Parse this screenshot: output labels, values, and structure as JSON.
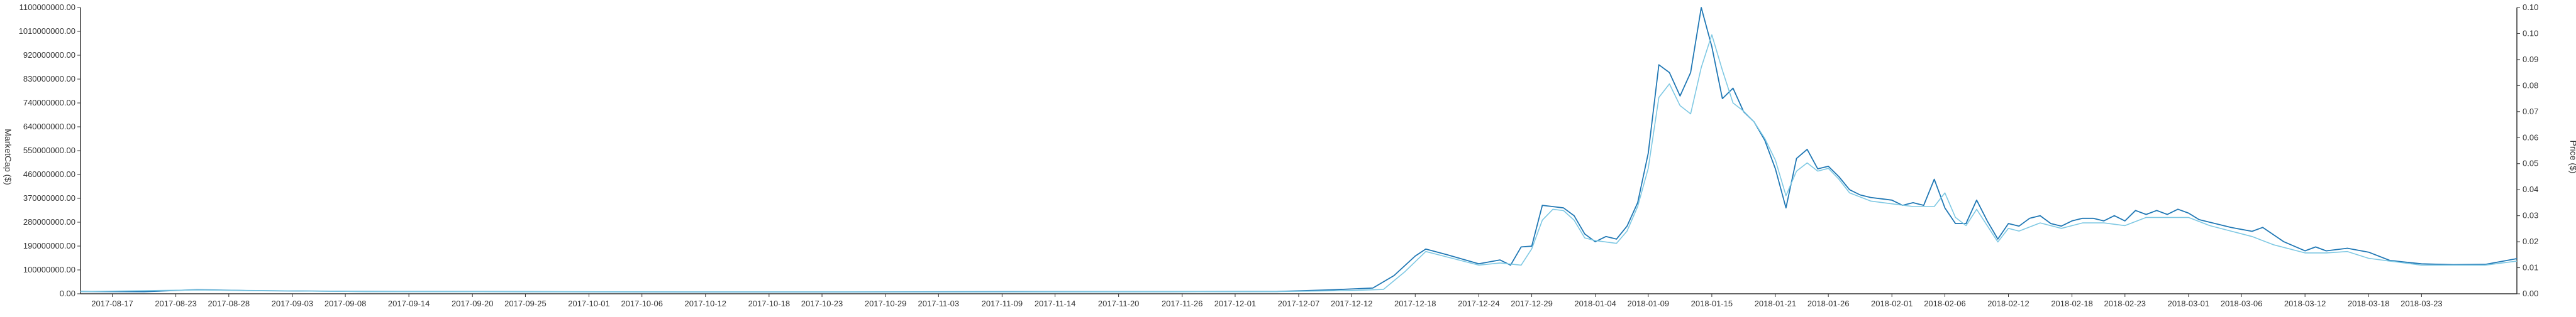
{
  "chart_data": {
    "type": "line",
    "title": "",
    "ylabel_left": "MarketCap ($)",
    "ylabel_right": "Price ($)",
    "y_left_ticks": [
      "0.00",
      "100000000.00",
      "190000000.00",
      "280000000.00",
      "370000000.00",
      "460000000.00",
      "550000000.00",
      "640000000.00",
      "740000000.00",
      "830000000.00",
      "920000000.00",
      "1010000000.00",
      "1100000000.00"
    ],
    "y_right_ticks": [
      "0.00",
      "0.01",
      "0.02",
      "0.03",
      "0.04",
      "0.05",
      "0.06",
      "0.07",
      "0.08",
      "0.09",
      "0.10",
      "0.10"
    ],
    "ylim_left": [
      0,
      1100000000
    ],
    "ylim_right": [
      0,
      0.105
    ],
    "x_ticks": [
      "2017-08-17",
      "2017-08-23",
      "2017-08-28",
      "2017-09-03",
      "2017-09-08",
      "2017-09-14",
      "2017-09-20",
      "2017-09-25",
      "2017-10-01",
      "2017-10-06",
      "2017-10-12",
      "2017-10-18",
      "2017-10-23",
      "2017-10-29",
      "2017-11-03",
      "2017-11-09",
      "2017-11-14",
      "2017-11-20",
      "2017-11-26",
      "2017-12-01",
      "2017-12-07",
      "2017-12-12",
      "2017-12-18",
      "2017-12-24",
      "2017-12-29",
      "2018-01-04",
      "2018-01-09",
      "2018-01-15",
      "2018-01-21",
      "2018-01-26",
      "2018-02-01",
      "2018-02-06",
      "2018-02-12",
      "2018-02-18",
      "2018-02-23",
      "2018-03-01",
      "2018-03-06",
      "2018-03-12",
      "2018-03-18",
      "2018-03-23"
    ],
    "grid": false,
    "colors": {
      "marketcap": "#1f77b4",
      "price": "#7ec8e3",
      "axis": "#333333"
    },
    "series": [
      {
        "axis": "left",
        "points": [
          [
            "2017-08-14",
            9000000
          ],
          [
            "2017-08-20",
            8000000
          ],
          [
            "2017-08-25",
            16000000
          ],
          [
            "2017-08-30",
            12000000
          ],
          [
            "2017-09-10",
            9000000
          ],
          [
            "2017-09-25",
            8000000
          ],
          [
            "2017-10-10",
            7000000
          ],
          [
            "2017-10-25",
            7000000
          ],
          [
            "2017-11-10",
            8000000
          ],
          [
            "2017-11-25",
            8000000
          ],
          [
            "2017-12-05",
            9000000
          ],
          [
            "2017-12-10",
            15000000
          ],
          [
            "2017-12-14",
            22000000
          ],
          [
            "2017-12-16",
            70000000
          ],
          [
            "2017-12-18",
            145000000
          ],
          [
            "2017-12-19",
            172000000
          ],
          [
            "2017-12-21",
            150000000
          ],
          [
            "2017-12-24",
            115000000
          ],
          [
            "2017-12-26",
            130000000
          ],
          [
            "2017-12-27",
            110000000
          ],
          [
            "2017-12-28",
            180000000
          ],
          [
            "2017-12-29",
            183000000
          ],
          [
            "2017-12-30",
            340000000
          ],
          [
            "2017-12-31",
            335000000
          ],
          [
            "2018-01-01",
            330000000
          ],
          [
            "2018-01-02",
            300000000
          ],
          [
            "2018-01-03",
            230000000
          ],
          [
            "2018-01-04",
            200000000
          ],
          [
            "2018-01-05",
            220000000
          ],
          [
            "2018-01-06",
            210000000
          ],
          [
            "2018-01-07",
            260000000
          ],
          [
            "2018-01-08",
            350000000
          ],
          [
            "2018-01-09",
            540000000
          ],
          [
            "2018-01-10",
            880000000
          ],
          [
            "2018-01-11",
            850000000
          ],
          [
            "2018-01-12",
            760000000
          ],
          [
            "2018-01-13",
            850000000
          ],
          [
            "2018-01-14",
            1100000000
          ],
          [
            "2018-01-15",
            950000000
          ],
          [
            "2018-01-16",
            750000000
          ],
          [
            "2018-01-17",
            790000000
          ],
          [
            "2018-01-18",
            700000000
          ],
          [
            "2018-01-19",
            660000000
          ],
          [
            "2018-01-20",
            590000000
          ],
          [
            "2018-01-21",
            480000000
          ],
          [
            "2018-01-22",
            330000000
          ],
          [
            "2018-01-23",
            520000000
          ],
          [
            "2018-01-24",
            555000000
          ],
          [
            "2018-01-25",
            480000000
          ],
          [
            "2018-01-26",
            490000000
          ],
          [
            "2018-01-27",
            450000000
          ],
          [
            "2018-01-28",
            400000000
          ],
          [
            "2018-01-29",
            380000000
          ],
          [
            "2018-01-30",
            370000000
          ],
          [
            "2018-01-31",
            365000000
          ],
          [
            "2018-02-01",
            360000000
          ],
          [
            "2018-02-02",
            340000000
          ],
          [
            "2018-02-03",
            350000000
          ],
          [
            "2018-02-04",
            340000000
          ],
          [
            "2018-02-05",
            440000000
          ],
          [
            "2018-02-06",
            330000000
          ],
          [
            "2018-02-07",
            270000000
          ],
          [
            "2018-02-08",
            270000000
          ],
          [
            "2018-02-09",
            360000000
          ],
          [
            "2018-02-10",
            280000000
          ],
          [
            "2018-02-11",
            210000000
          ],
          [
            "2018-02-12",
            270000000
          ],
          [
            "2018-02-13",
            260000000
          ],
          [
            "2018-02-14",
            290000000
          ],
          [
            "2018-02-15",
            300000000
          ],
          [
            "2018-02-16",
            270000000
          ],
          [
            "2018-02-17",
            260000000
          ],
          [
            "2018-02-18",
            280000000
          ],
          [
            "2018-02-19",
            290000000
          ],
          [
            "2018-02-20",
            290000000
          ],
          [
            "2018-02-21",
            280000000
          ],
          [
            "2018-02-22",
            300000000
          ],
          [
            "2018-02-23",
            280000000
          ],
          [
            "2018-02-24",
            320000000
          ],
          [
            "2018-02-25",
            305000000
          ],
          [
            "2018-02-26",
            320000000
          ],
          [
            "2018-02-27",
            305000000
          ],
          [
            "2018-02-28",
            325000000
          ],
          [
            "2018-03-01",
            310000000
          ],
          [
            "2018-03-02",
            285000000
          ],
          [
            "2018-03-03",
            275000000
          ],
          [
            "2018-03-05",
            255000000
          ],
          [
            "2018-03-07",
            240000000
          ],
          [
            "2018-03-08",
            255000000
          ],
          [
            "2018-03-10",
            200000000
          ],
          [
            "2018-03-12",
            165000000
          ],
          [
            "2018-03-13",
            180000000
          ],
          [
            "2018-03-14",
            165000000
          ],
          [
            "2018-03-16",
            175000000
          ],
          [
            "2018-03-18",
            160000000
          ],
          [
            "2018-03-20",
            128000000
          ],
          [
            "2018-03-23",
            115000000
          ],
          [
            "2018-03-26",
            112000000
          ],
          [
            "2018-03-29",
            113000000
          ],
          [
            "2018-04-01",
            135000000
          ]
        ]
      },
      {
        "axis": "right",
        "points": [
          [
            "2017-08-14",
            0.0008
          ],
          [
            "2017-08-25",
            0.0014
          ],
          [
            "2017-09-10",
            0.0008
          ],
          [
            "2017-10-10",
            0.0007
          ],
          [
            "2017-11-10",
            0.0007
          ],
          [
            "2017-12-05",
            0.0008
          ],
          [
            "2017-12-12",
            0.0012
          ],
          [
            "2017-12-15",
            0.0016
          ],
          [
            "2017-12-17",
            0.008
          ],
          [
            "2017-12-19",
            0.0155
          ],
          [
            "2017-12-21",
            0.0135
          ],
          [
            "2017-12-24",
            0.0105
          ],
          [
            "2017-12-26",
            0.0113
          ],
          [
            "2017-12-28",
            0.0105
          ],
          [
            "2017-12-29",
            0.0165
          ],
          [
            "2017-12-30",
            0.027
          ],
          [
            "2017-12-31",
            0.031
          ],
          [
            "2018-01-01",
            0.0305
          ],
          [
            "2018-01-02",
            0.027
          ],
          [
            "2018-01-03",
            0.0205
          ],
          [
            "2018-01-04",
            0.0195
          ],
          [
            "2018-01-06",
            0.0185
          ],
          [
            "2018-01-07",
            0.023
          ],
          [
            "2018-01-08",
            0.032
          ],
          [
            "2018-01-09",
            0.046
          ],
          [
            "2018-01-10",
            0.072
          ],
          [
            "2018-01-11",
            0.077
          ],
          [
            "2018-01-12",
            0.069
          ],
          [
            "2018-01-13",
            0.066
          ],
          [
            "2018-01-14",
            0.083
          ],
          [
            "2018-01-15",
            0.095
          ],
          [
            "2018-01-16",
            0.082
          ],
          [
            "2018-01-17",
            0.07
          ],
          [
            "2018-01-18",
            0.067
          ],
          [
            "2018-01-19",
            0.063
          ],
          [
            "2018-01-20",
            0.057
          ],
          [
            "2018-01-21",
            0.049
          ],
          [
            "2018-01-22",
            0.036
          ],
          [
            "2018-01-23",
            0.045
          ],
          [
            "2018-01-24",
            0.048
          ],
          [
            "2018-01-25",
            0.045
          ],
          [
            "2018-01-26",
            0.046
          ],
          [
            "2018-01-27",
            0.042
          ],
          [
            "2018-01-28",
            0.037
          ],
          [
            "2018-01-30",
            0.034
          ],
          [
            "2018-02-01",
            0.033
          ],
          [
            "2018-02-03",
            0.032
          ],
          [
            "2018-02-05",
            0.032
          ],
          [
            "2018-02-06",
            0.037
          ],
          [
            "2018-02-07",
            0.028
          ],
          [
            "2018-02-08",
            0.025
          ],
          [
            "2018-02-09",
            0.031
          ],
          [
            "2018-02-10",
            0.025
          ],
          [
            "2018-02-11",
            0.019
          ],
          [
            "2018-02-12",
            0.024
          ],
          [
            "2018-02-13",
            0.023
          ],
          [
            "2018-02-15",
            0.026
          ],
          [
            "2018-02-17",
            0.024
          ],
          [
            "2018-02-19",
            0.026
          ],
          [
            "2018-02-21",
            0.026
          ],
          [
            "2018-02-23",
            0.025
          ],
          [
            "2018-02-25",
            0.028
          ],
          [
            "2018-02-27",
            0.028
          ],
          [
            "2018-03-01",
            0.028
          ],
          [
            "2018-03-03",
            0.025
          ],
          [
            "2018-03-05",
            0.023
          ],
          [
            "2018-03-07",
            0.021
          ],
          [
            "2018-03-09",
            0.018
          ],
          [
            "2018-03-12",
            0.015
          ],
          [
            "2018-03-14",
            0.015
          ],
          [
            "2018-03-16",
            0.0155
          ],
          [
            "2018-03-18",
            0.013
          ],
          [
            "2018-03-20",
            0.012
          ],
          [
            "2018-03-23",
            0.0105
          ],
          [
            "2018-03-26",
            0.0105
          ],
          [
            "2018-03-29",
            0.0105
          ],
          [
            "2018-04-01",
            0.012
          ]
        ]
      }
    ]
  }
}
